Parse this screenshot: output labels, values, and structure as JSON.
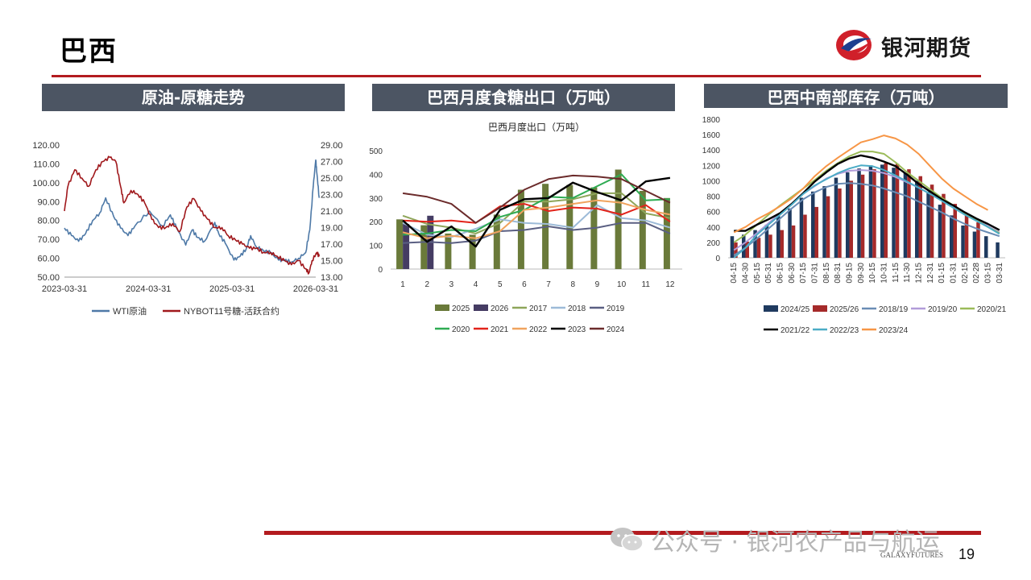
{
  "page": {
    "title": "巴西",
    "logo_text": "银河期货",
    "watermark": "公众号 · 银河农产品与航运",
    "brand_small": "GALAXYFUTURES",
    "page_number": "19",
    "accent_color": "#b31b1f",
    "banner_color": "#4c5563"
  },
  "banners": [
    "原油-原糖走势",
    "巴西月度食糖出口（万吨）",
    "巴西中南部库存（万吨）"
  ],
  "chart_data": [
    {
      "type": "line",
      "title": "",
      "x_ticks": [
        "2023-03-31",
        "2024-03-31",
        "2025-03-31",
        "2026-03-31"
      ],
      "y_left_ticks": [
        "50.00",
        "60.00",
        "70.00",
        "80.00",
        "90.00",
        "100.00",
        "110.00",
        "120.00"
      ],
      "y_right_ticks": [
        "13.00",
        "15.00",
        "17.00",
        "19.00",
        "21.00",
        "23.00",
        "25.00",
        "27.00",
        "29.00"
      ],
      "ylim_left": [
        50,
        120
      ],
      "ylim_right": [
        13,
        29
      ],
      "series": [
        {
          "name": "WTI原油",
          "axis": "left",
          "color": "#4e79a7",
          "x": [
            "2023-03-31",
            "2023-05-01",
            "2023-06-01",
            "2023-07-01",
            "2023-08-01",
            "2023-09-01",
            "2023-09-27",
            "2023-11-01",
            "2023-12-01",
            "2024-01-02",
            "2024-02-01",
            "2024-04-05",
            "2024-06-01",
            "2024-07-05",
            "2024-08-01",
            "2024-09-10",
            "2024-10-08",
            "2024-11-01",
            "2024-12-01",
            "2025-01-15",
            "2025-02-01",
            "2025-03-01",
            "2025-04-08",
            "2025-05-05",
            "2025-06-01",
            "2025-06-20",
            "2025-07-15",
            "2025-08-15",
            "2025-09-15",
            "2025-10-20",
            "2025-11-15",
            "2025-12-15",
            "2026-01-15",
            "2026-02-15",
            "2026-03-05",
            "2026-03-20",
            "2026-03-31",
            "2026-04-05",
            "2026-04-15"
          ],
          "values": [
            76,
            72,
            69,
            73,
            80,
            84,
            92,
            82,
            76,
            72,
            77,
            85,
            77,
            83,
            76,
            67,
            75,
            71,
            69,
            79,
            73,
            68,
            59,
            61,
            65,
            72,
            66,
            64,
            63,
            59,
            59,
            58,
            60,
            63,
            75,
            98,
            112,
            105,
            92
          ]
        },
        {
          "name": "NYBOT11号糖-活跃合约",
          "axis": "right",
          "color": "#a0181c",
          "x": [
            "2023-03-31",
            "2023-04-15",
            "2023-05-15",
            "2023-06-15",
            "2023-07-15",
            "2023-08-15",
            "2023-09-15",
            "2023-10-15",
            "2023-11-10",
            "2023-12-01",
            "2023-12-15",
            "2024-01-15",
            "2024-02-15",
            "2024-03-15",
            "2024-04-15",
            "2024-05-15",
            "2024-06-15",
            "2024-07-15",
            "2024-08-15",
            "2024-09-15",
            "2024-10-15",
            "2024-11-15",
            "2024-12-15",
            "2025-01-15",
            "2025-02-15",
            "2025-03-15",
            "2025-04-15",
            "2025-05-15",
            "2025-06-15",
            "2025-07-15",
            "2025-08-15",
            "2025-09-15",
            "2025-10-15",
            "2025-11-15",
            "2025-12-15",
            "2026-01-15",
            "2026-02-15",
            "2026-03-01",
            "2026-03-15",
            "2026-04-05",
            "2026-04-15"
          ],
          "values": [
            21,
            24,
            26,
            25,
            24,
            26,
            27,
            27.5,
            27,
            24,
            22,
            23.5,
            23,
            22,
            20,
            19,
            19,
            19.5,
            18.5,
            21.5,
            22.5,
            21,
            20,
            19,
            19,
            18,
            17.5,
            17,
            16.5,
            16.5,
            16,
            16,
            15.5,
            15,
            14.5,
            15,
            14,
            13.5,
            15,
            16,
            15.5
          ]
        }
      ]
    },
    {
      "type": "bar",
      "title": "巴西月度出口（万吨）",
      "categories": [
        "1",
        "2",
        "3",
        "4",
        "5",
        "6",
        "7",
        "8",
        "9",
        "10",
        "11",
        "12"
      ],
      "y_ticks": [
        "0",
        "100",
        "200",
        "300",
        "400",
        "500"
      ],
      "ylim": [
        0,
        500
      ],
      "bar_series": [
        {
          "name": "2025",
          "color": "#6a7a3a",
          "values": [
            210,
            185,
            150,
            145,
            230,
            335,
            360,
            355,
            345,
            420,
            330,
            300
          ]
        },
        {
          "name": "2026",
          "color": "#453c63",
          "values": [
            190,
            225,
            null,
            null,
            null,
            null,
            null,
            null,
            null,
            null,
            null,
            null
          ]
        }
      ],
      "line_series": [
        {
          "name": "2017",
          "color": "#8ea65a",
          "values": [
            225,
            190,
            175,
            150,
            195,
            285,
            285,
            295,
            320,
            320,
            235,
            215
          ]
        },
        {
          "name": "2018",
          "color": "#9dbbd8",
          "values": [
            195,
            145,
            135,
            170,
            210,
            195,
            190,
            175,
            270,
            215,
            205,
            175
          ]
        },
        {
          "name": "2019",
          "color": "#5a5f82",
          "values": [
            110,
            115,
            110,
            120,
            160,
            165,
            180,
            165,
            175,
            195,
            195,
            150
          ]
        },
        {
          "name": "2020",
          "color": "#2eab52",
          "values": [
            145,
            150,
            165,
            160,
            220,
            250,
            305,
            300,
            350,
            400,
            290,
            295
          ]
        },
        {
          "name": "2021",
          "color": "#e2231a",
          "values": [
            205,
            200,
            205,
            195,
            265,
            275,
            245,
            260,
            255,
            230,
            270,
            200
          ]
        },
        {
          "name": "2022",
          "color": "#f0a35e",
          "values": [
            155,
            130,
            140,
            130,
            160,
            250,
            260,
            275,
            290,
            280,
            250,
            230
          ]
        },
        {
          "name": "2023",
          "color": "#000000",
          "values": [
            205,
            115,
            180,
            95,
            250,
            295,
            300,
            365,
            325,
            290,
            370,
            385
          ]
        },
        {
          "name": "2024",
          "color": "#6b2b2b",
          "values": [
            320,
            305,
            275,
            195,
            260,
            335,
            380,
            395,
            390,
            380,
            330,
            280
          ]
        }
      ]
    },
    {
      "type": "bar",
      "title": "",
      "categories": [
        "04-15",
        "04-30",
        "05-15",
        "05-31",
        "06-15",
        "06-30",
        "07-15",
        "07-31",
        "08-15",
        "08-31",
        "09-15",
        "09-30",
        "10-15",
        "10-31",
        "11-15",
        "11-30",
        "12-15",
        "12-31",
        "01-15",
        "01-31",
        "02-15",
        "02-28",
        "03-15",
        "03-31"
      ],
      "y_ticks": [
        "0",
        "200",
        "400",
        "600",
        "800",
        "1000",
        "1200",
        "1400",
        "1600",
        "1800"
      ],
      "ylim": [
        0,
        1800
      ],
      "bar_series": [
        {
          "name": "2024/25",
          "color": "#1f3a5f",
          "values": [
            280,
            300,
            360,
            430,
            540,
            640,
            780,
            860,
            930,
            1040,
            1110,
            1160,
            1200,
            1210,
            1170,
            1100,
            1000,
            860,
            690,
            550,
            420,
            340,
            280,
            200
          ]
        },
        {
          "name": "2025/26",
          "color": "#a52a2a",
          "values": [
            200,
            210,
            260,
            300,
            360,
            420,
            560,
            660,
            800,
            900,
            1000,
            1080,
            1150,
            1230,
            1220,
            1150,
            1060,
            950,
            830,
            700,
            560,
            460,
            null,
            null
          ]
        }
      ],
      "line_series": [
        {
          "name": "2018/19",
          "color": "#6a8db5",
          "values": [
            30,
            130,
            250,
            380,
            510,
            640,
            760,
            850,
            920,
            960,
            970,
            960,
            940,
            900,
            850,
            800,
            730,
            660,
            590,
            510,
            440,
            380,
            330,
            280
          ]
        },
        {
          "name": "2019/20",
          "color": "#b19cd9",
          "values": [
            100,
            200,
            320,
            450,
            580,
            700,
            830,
            930,
            1030,
            1090,
            1130,
            1140,
            1130,
            1100,
            1050,
            980,
            910,
            830,
            750,
            660,
            580,
            500,
            410,
            330
          ]
        },
        {
          "name": "2020/21",
          "color": "#9bbb59",
          "values": [
            200,
            300,
            430,
            560,
            680,
            790,
            900,
            1010,
            1130,
            1230,
            1320,
            1380,
            1380,
            1350,
            1240,
            1110,
            1000,
            890,
            780,
            680,
            580,
            490,
            400,
            320
          ]
        },
        {
          "name": "2021/22",
          "color": "#000000",
          "values": [
            350,
            350,
            430,
            500,
            580,
            700,
            840,
            990,
            1110,
            1220,
            1290,
            1330,
            1300,
            1250,
            1190,
            1080,
            960,
            860,
            760,
            680,
            590,
            510,
            440,
            360
          ]
        },
        {
          "name": "2022/23",
          "color": "#4bacc6",
          "values": [
            0,
            130,
            300,
            430,
            560,
            690,
            830,
            940,
            1020,
            1100,
            1160,
            1200,
            1190,
            1140,
            1070,
            990,
            910,
            830,
            740,
            650,
            560,
            480,
            400,
            310
          ]
        },
        {
          "name": "2023/24",
          "color": "#f79646",
          "values": [
            330,
            400,
            500,
            580,
            670,
            770,
            900,
            1060,
            1190,
            1300,
            1400,
            1500,
            1540,
            1590,
            1550,
            1470,
            1350,
            1190,
            1030,
            900,
            800,
            700,
            620,
            null
          ]
        }
      ]
    }
  ]
}
